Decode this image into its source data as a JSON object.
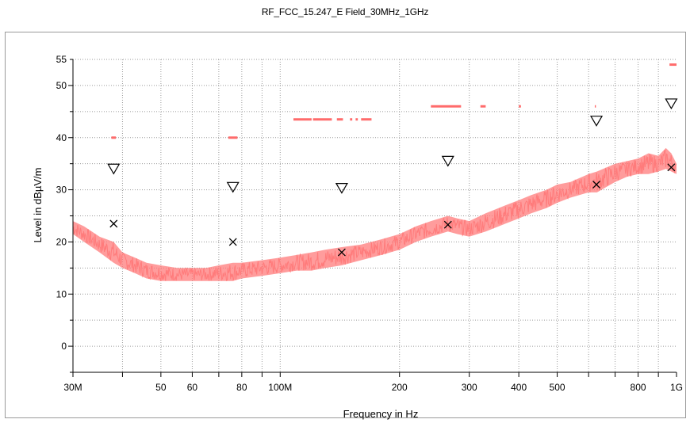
{
  "chart_data": {
    "type": "line",
    "title": "RF_FCC_15.247_E Field_30MHz_1GHz",
    "xlabel": "Frequency in Hz",
    "ylabel": "Level in dBµV/m",
    "x_scale": "log",
    "xlim": [
      30,
      1000
    ],
    "ylim": [
      -5,
      55
    ],
    "x_unit": "MHz",
    "x_ticks": [
      {
        "value": 30,
        "label": "30M"
      },
      {
        "value": 50,
        "label": "50"
      },
      {
        "value": 60,
        "label": "60"
      },
      {
        "value": 80,
        "label": "80"
      },
      {
        "value": 100,
        "label": "100M"
      },
      {
        "value": 200,
        "label": "200"
      },
      {
        "value": 300,
        "label": "300"
      },
      {
        "value": 400,
        "label": "400"
      },
      {
        "value": 500,
        "label": "500"
      },
      {
        "value": 800,
        "label": "800"
      },
      {
        "value": 1000,
        "label": "1G"
      }
    ],
    "y_ticks": [
      {
        "value": 0,
        "label": "0"
      },
      {
        "value": 10,
        "label": "10"
      },
      {
        "value": 20,
        "label": "20"
      },
      {
        "value": 30,
        "label": "30"
      },
      {
        "value": 40,
        "label": "40"
      },
      {
        "value": 50,
        "label": "50"
      },
      {
        "value": 55,
        "label": "55"
      }
    ],
    "grid": true,
    "series": [
      {
        "type": "area-trace",
        "color": "#ff7b7b",
        "x": [
          30,
          32,
          35,
          38,
          40,
          43,
          46,
          50,
          55,
          60,
          65,
          70,
          76,
          80,
          90,
          100,
          110,
          120,
          130,
          143,
          160,
          180,
          200,
          220,
          240,
          265,
          280,
          300,
          330,
          370,
          400,
          430,
          470,
          500,
          540,
          600,
          630,
          700,
          750,
          800,
          850,
          900,
          940,
          970,
          1000
        ],
        "low": [
          21.5,
          20,
          18,
          16,
          15,
          14,
          13,
          12.5,
          12.5,
          12.5,
          12.5,
          12.5,
          12.5,
          13,
          13.5,
          14,
          14.5,
          14.5,
          15,
          15.5,
          16.5,
          17.5,
          18.5,
          20,
          21,
          22,
          21.5,
          21,
          22,
          23.5,
          24.5,
          25.5,
          26.5,
          27.5,
          28.5,
          29.5,
          29.5,
          31.5,
          32.5,
          33,
          33,
          33.5,
          34,
          33.5,
          33
        ],
        "high": [
          24,
          23,
          21,
          20,
          18,
          17,
          16,
          15.5,
          15,
          15,
          15,
          15.5,
          16,
          16,
          16.5,
          17,
          17.5,
          18,
          18.5,
          19,
          19.5,
          20.5,
          21.5,
          23,
          24,
          25,
          24.5,
          24,
          25.5,
          27,
          28,
          29,
          30,
          31,
          31.5,
          33,
          33.5,
          35,
          35.5,
          36,
          37,
          36.5,
          38,
          37,
          35
        ]
      }
    ],
    "limit_lines": {
      "color": "#ff6b6b",
      "segments": [
        {
          "x": [
            37.5,
            38.5
          ],
          "y": 40
        },
        {
          "x": [
            74,
            78
          ],
          "y": 40
        },
        {
          "x": [
            108,
            120
          ],
          "y": 43.5
        },
        {
          "x": [
            121,
            135
          ],
          "y": 43.5
        },
        {
          "x": [
            139,
            144
          ],
          "y": 43.5
        },
        {
          "x": [
            150,
            152
          ],
          "y": 43.5
        },
        {
          "x": [
            155,
            157
          ],
          "y": 43.5
        },
        {
          "x": [
            160,
            170
          ],
          "y": 43.5
        },
        {
          "x": [
            240,
            286
          ],
          "y": 46
        },
        {
          "x": [
            320,
            330
          ],
          "y": 46
        },
        {
          "x": [
            400,
            405
          ],
          "y": 46
        },
        {
          "x": [
            622,
            626
          ],
          "y": 46
        },
        {
          "x": [
            960,
            1000
          ],
          "y": 54
        }
      ]
    },
    "qp_markers": {
      "symbol": "x",
      "points": [
        {
          "x": 38,
          "y": 23.5
        },
        {
          "x": 76,
          "y": 20
        },
        {
          "x": 143,
          "y": 18
        },
        {
          "x": 265,
          "y": 23.3
        },
        {
          "x": 628,
          "y": 31
        },
        {
          "x": 970,
          "y": 34.3
        }
      ]
    },
    "peak_markers": {
      "symbol": "triangle-down",
      "points": [
        {
          "x": 38,
          "y": 34
        },
        {
          "x": 76,
          "y": 30.5
        },
        {
          "x": 143,
          "y": 30.3
        },
        {
          "x": 265,
          "y": 35.5
        },
        {
          "x": 628,
          "y": 43.2
        },
        {
          "x": 970,
          "y": 46.5
        }
      ]
    }
  }
}
